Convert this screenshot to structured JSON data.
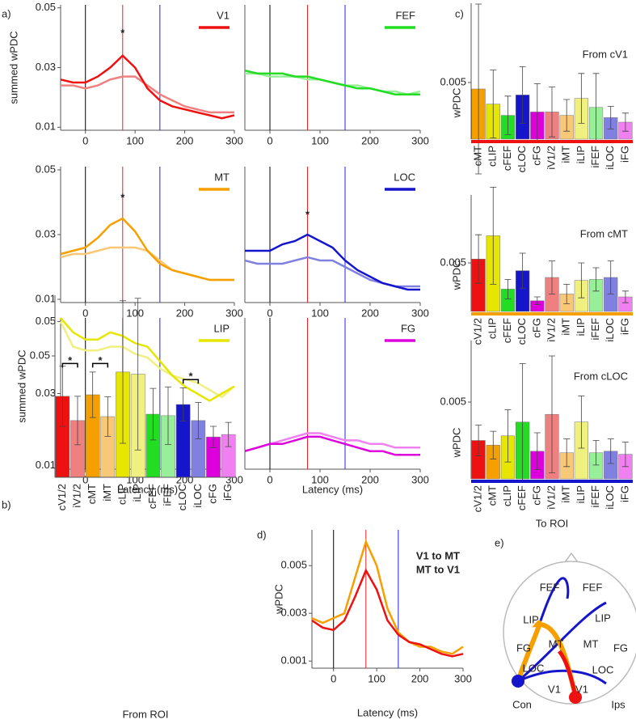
{
  "panel_labels": [
    "a)",
    "b)",
    "c)",
    "d)",
    "e)"
  ],
  "chart_data": [
    {
      "type": "line",
      "title": "V1",
      "title_color": "#ee1111",
      "ylabel": "summed wPDC",
      "x": [
        -50,
        -25,
        0,
        25,
        50,
        75,
        100,
        125,
        150,
        175,
        200,
        225,
        250,
        275,
        300
      ],
      "series": [
        {
          "color": "#ee1111",
          "values": [
            0.026,
            0.025,
            0.025,
            0.027,
            0.03,
            0.034,
            0.03,
            0.023,
            0.019,
            0.017,
            0.016,
            0.015,
            0.014,
            0.013,
            0.014
          ]
        },
        {
          "color": "#f08080",
          "values": [
            0.024,
            0.024,
            0.023,
            0.024,
            0.026,
            0.027,
            0.027,
            0.024,
            0.021,
            0.019,
            0.017,
            0.016,
            0.015,
            0.015,
            0.015
          ]
        }
      ],
      "xlim": [
        -50,
        300
      ],
      "xticks": [
        0,
        100,
        200,
        300
      ],
      "ylim": [
        0.009,
        0.051
      ],
      "yticks": [
        0.01,
        0.03,
        0.05
      ],
      "vlines": [
        0,
        75,
        150
      ],
      "vline_colors": [
        "#000000",
        "#ee2222",
        "#2222ee"
      ],
      "annotations": [
        {
          "text": "*",
          "x": 75,
          "y": 0.0413
        }
      ]
    },
    {
      "type": "line",
      "title": "FEF",
      "title_color": "#22dd22",
      "x": [
        -50,
        -25,
        0,
        25,
        50,
        75,
        100,
        125,
        150,
        175,
        200,
        225,
        250,
        275,
        300
      ],
      "series": [
        {
          "color": "#22dd22",
          "values": [
            0.029,
            0.028,
            0.028,
            0.028,
            0.027,
            0.027,
            0.026,
            0.025,
            0.024,
            0.023,
            0.023,
            0.022,
            0.021,
            0.021,
            0.021
          ]
        },
        {
          "color": "#99ee99",
          "values": [
            0.028,
            0.028,
            0.027,
            0.027,
            0.027,
            0.026,
            0.026,
            0.025,
            0.024,
            0.024,
            0.023,
            0.022,
            0.022,
            0.021,
            0.022
          ]
        }
      ],
      "xlim": [
        -50,
        300
      ],
      "xticks": [
        0,
        100,
        200,
        300
      ],
      "ylim": [
        0.009,
        0.051
      ],
      "vlines": [
        0,
        75,
        150
      ],
      "vline_colors": [
        "#000000",
        "#ee2222",
        "#2222ee"
      ]
    },
    {
      "type": "line",
      "title": "MT",
      "title_color": "#f5a000",
      "x": [
        -50,
        -25,
        0,
        25,
        50,
        75,
        100,
        125,
        150,
        175,
        200,
        225,
        250,
        275,
        300
      ],
      "series": [
        {
          "color": "#f5a000",
          "values": [
            0.024,
            0.025,
            0.026,
            0.029,
            0.033,
            0.035,
            0.031,
            0.025,
            0.021,
            0.019,
            0.018,
            0.017,
            0.016,
            0.016,
            0.016
          ]
        },
        {
          "color": "#f8c878",
          "values": [
            0.023,
            0.024,
            0.024,
            0.025,
            0.026,
            0.026,
            0.026,
            0.025,
            0.022,
            0.019,
            0.018,
            0.017,
            0.016,
            0.016,
            0.016
          ]
        }
      ],
      "xlim": [
        -50,
        300
      ],
      "xticks": [
        0,
        100,
        200,
        300
      ],
      "ylim": [
        0.009,
        0.051
      ],
      "yticks": [
        0.01,
        0.03,
        0.05
      ],
      "vlines": [
        0,
        75,
        150
      ],
      "vline_colors": [
        "#000000",
        "#ee2222",
        "#2222ee"
      ],
      "annotations": [
        {
          "text": "*",
          "x": 75,
          "y": 0.0412
        }
      ]
    },
    {
      "type": "line",
      "title": "LOC",
      "title_color": "#1515cc",
      "x": [
        -50,
        -25,
        0,
        25,
        50,
        75,
        100,
        125,
        150,
        175,
        200,
        225,
        250,
        275,
        300
      ],
      "series": [
        {
          "color": "#1515cc",
          "values": [
            0.025,
            0.025,
            0.025,
            0.027,
            0.028,
            0.03,
            0.028,
            0.026,
            0.022,
            0.019,
            0.017,
            0.015,
            0.014,
            0.013,
            0.013
          ]
        },
        {
          "color": "#8080e0",
          "values": [
            0.022,
            0.021,
            0.021,
            0.021,
            0.022,
            0.023,
            0.022,
            0.022,
            0.02,
            0.018,
            0.016,
            0.015,
            0.014,
            0.014,
            0.014
          ]
        }
      ],
      "xlim": [
        -50,
        300
      ],
      "xticks": [
        0,
        100,
        200,
        300
      ],
      "ylim": [
        0.009,
        0.051
      ],
      "vlines": [
        0,
        75,
        150
      ],
      "vline_colors": [
        "#000000",
        "#ee2222",
        "#2222ee"
      ],
      "annotations": [
        {
          "text": "*",
          "x": 75,
          "y": 0.036
        }
      ]
    },
    {
      "type": "line",
      "title": "LIP",
      "title_color": "#e6e600",
      "xlabel": "Latency (ms)",
      "x": [
        -50,
        -25,
        0,
        25,
        50,
        75,
        100,
        125,
        150,
        175,
        200,
        225,
        250,
        275,
        300
      ],
      "series": [
        {
          "color": "#e6e600",
          "values": [
            0.051,
            0.047,
            0.045,
            0.045,
            0.047,
            0.046,
            0.044,
            0.043,
            0.039,
            0.035,
            0.032,
            0.03,
            0.028,
            0.03,
            0.032
          ]
        },
        {
          "color": "#f0f080",
          "values": [
            0.05,
            0.043,
            0.042,
            0.042,
            0.043,
            0.043,
            0.041,
            0.04,
            0.037,
            0.035,
            0.034,
            0.033,
            0.031,
            0.029,
            0.032
          ]
        }
      ],
      "xlim": [
        -50,
        300
      ],
      "xticks": [
        0,
        100,
        200,
        300
      ],
      "ylim": [
        0.009,
        0.051
      ],
      "yticks": [
        0.01,
        0.03,
        0.05
      ],
      "vlines": [
        0,
        75,
        150
      ],
      "vline_colors": [
        "#000000",
        "#ee2222",
        "#2222ee"
      ]
    },
    {
      "type": "line",
      "title": "FG",
      "title_color": "#dd00dd",
      "xlabel": "Latency (ms)",
      "x": [
        -50,
        -25,
        0,
        25,
        50,
        75,
        100,
        125,
        150,
        175,
        200,
        225,
        250,
        275,
        300
      ],
      "series": [
        {
          "color": "#dd00dd",
          "values": [
            0.014,
            0.015,
            0.016,
            0.016,
            0.017,
            0.018,
            0.018,
            0.017,
            0.016,
            0.015,
            0.014,
            0.014,
            0.013,
            0.013,
            0.013
          ]
        },
        {
          "color": "#f080f0",
          "values": [
            0.014,
            0.015,
            0.016,
            0.017,
            0.018,
            0.019,
            0.019,
            0.018,
            0.017,
            0.017,
            0.016,
            0.016,
            0.015,
            0.015,
            0.015
          ]
        }
      ],
      "xlim": [
        -50,
        300
      ],
      "xticks": [
        0,
        100,
        200,
        300
      ],
      "ylim": [
        0.009,
        0.051
      ],
      "vlines": [
        0,
        75,
        150
      ],
      "vline_colors": [
        "#000000",
        "#ee2222",
        "#2222ee"
      ]
    },
    {
      "type": "bar",
      "ylabel": "summed wPDC",
      "xlabel": "From ROI",
      "categories": [
        "cV1/2",
        "iV1/2",
        "cMT",
        "iMT",
        "cLIP",
        "iLIP",
        "cFEF",
        "iFEF",
        "cLOC",
        "iLOC",
        "cFG",
        "iFG"
      ],
      "values": [
        0.0367,
        0.0287,
        0.0372,
        0.03,
        0.0447,
        0.044,
        0.0308,
        0.0303,
        0.034,
        0.0287,
        0.0233,
        0.0241
      ],
      "errors": [
        0.0099,
        0.008,
        0.0075,
        0.0065,
        0.0235,
        0.025,
        0.0085,
        0.0095,
        0.0055,
        0.006,
        0.0035,
        0.004
      ],
      "colors": [
        "#ee1111",
        "#f08080",
        "#f5a000",
        "#f8c878",
        "#e6e600",
        "#f0f080",
        "#22dd22",
        "#99ee99",
        "#1515cc",
        "#8080e0",
        "#dd00dd",
        "#f080f0"
      ],
      "ylim": [
        0.01,
        0.07
      ],
      "yticks": [
        0.05
      ],
      "annotations": [
        {
          "text": "*",
          "between": [
            0,
            1
          ],
          "y": 0.0475
        },
        {
          "text": "*",
          "between": [
            2,
            3
          ],
          "y": 0.0475
        },
        {
          "text": "*",
          "between": [
            8,
            9
          ],
          "y": 0.0422
        }
      ]
    },
    {
      "type": "bar",
      "title": "From cV1",
      "ylabel": "wPDC",
      "baseline_color": "#ee1111",
      "categories": [
        "cMT",
        "cLIP",
        "cFEF",
        "cLOC",
        "cFG",
        "iV1/2",
        "iMT",
        "iLIP",
        "iFEF",
        "iLOC",
        "iFG"
      ],
      "values": [
        0.00443,
        0.0031,
        0.0021,
        0.0039,
        0.0024,
        0.0024,
        0.0021,
        0.0036,
        0.0028,
        0.0019,
        0.0015
      ],
      "errors": [
        0.0075,
        0.003,
        0.0017,
        0.0025,
        0.0025,
        0.0022,
        0.0014,
        0.0022,
        0.003,
        0.001,
        0.0008
      ],
      "colors": [
        "#f5a000",
        "#e6e600",
        "#22dd22",
        "#1515cc",
        "#dd00dd",
        "#f08080",
        "#f8c878",
        "#f0f080",
        "#99ee99",
        "#8080e0",
        "#f080f0"
      ],
      "ylim": [
        0,
        0.012
      ],
      "yticks": [
        0.005
      ]
    },
    {
      "type": "bar",
      "title": "From cMT",
      "ylabel": "wPDC",
      "baseline_color": "#f5a000",
      "categories": [
        "cV1/2",
        "cLIP",
        "cFEF",
        "cLOC",
        "cFG",
        "iV1/2",
        "iMT",
        "iLIP",
        "iFEF",
        "iLOC",
        "iFG"
      ],
      "values": [
        0.0054,
        0.0078,
        0.0023,
        0.0042,
        0.0011,
        0.0035,
        0.0018,
        0.0032,
        0.0033,
        0.0035,
        0.0015
      ],
      "errors": [
        0.0025,
        0.005,
        0.001,
        0.0018,
        0.0004,
        0.0017,
        0.001,
        0.0018,
        0.0012,
        0.0017,
        0.0006
      ],
      "colors": [
        "#ee1111",
        "#e6e600",
        "#22dd22",
        "#1515cc",
        "#dd00dd",
        "#f08080",
        "#f8c878",
        "#f0f080",
        "#99ee99",
        "#8080e0",
        "#f080f0"
      ],
      "ylim": [
        0,
        0.012
      ],
      "yticks": [
        0.005
      ]
    },
    {
      "type": "bar",
      "title": "From cLOC",
      "ylabel": "wPDC",
      "xlabel": "To ROI",
      "baseline_color": "#1515cc",
      "categories": [
        "cV1/2",
        "cMT",
        "cLIP",
        "cFEF",
        "cFG",
        "iV1/2",
        "iMT",
        "iLIP",
        "iFEF",
        "iLOC",
        "iFG"
      ],
      "values": [
        0.0025,
        0.0022,
        0.0028,
        0.0037,
        0.0018,
        0.0042,
        0.0017,
        0.0037,
        0.0017,
        0.0018,
        0.0016
      ],
      "errors": [
        0.001,
        0.0009,
        0.0017,
        0.0038,
        0.0012,
        0.0038,
        0.0009,
        0.0017,
        0.0008,
        0.0008,
        0.0008
      ],
      "colors": [
        "#ee1111",
        "#f5a000",
        "#e6e600",
        "#22dd22",
        "#dd00dd",
        "#f08080",
        "#f8c878",
        "#f0f080",
        "#99ee99",
        "#8080e0",
        "#f080f0"
      ],
      "ylim": [
        0,
        0.009
      ],
      "yticks": [
        0.005
      ]
    },
    {
      "type": "line",
      "ylabel": "wPDC",
      "xlabel": "Latency (ms)",
      "x": [
        -50,
        -25,
        0,
        25,
        50,
        75,
        100,
        125,
        150,
        175,
        200,
        225,
        250,
        275,
        300
      ],
      "series": [
        {
          "name": "V1 to MT",
          "color": "#ee1111",
          "values": [
            0.0027,
            0.0024,
            0.0023,
            0.0027,
            0.0037,
            0.0048,
            0.004,
            0.0027,
            0.0021,
            0.0018,
            0.0017,
            0.0015,
            0.0013,
            0.0012,
            0.0013
          ]
        },
        {
          "name": "MT to V1",
          "color": "#f5a000",
          "values": [
            0.0028,
            0.0026,
            0.0028,
            0.003,
            0.0045,
            0.006,
            0.005,
            0.0032,
            0.0022,
            0.0018,
            0.0016,
            0.0016,
            0.0014,
            0.0013,
            0.0016
          ]
        }
      ],
      "xlim": [
        -50,
        300
      ],
      "xticks": [
        0,
        100,
        200,
        300
      ],
      "ylim": [
        0.0007,
        0.0065
      ],
      "yticks": [
        0.001,
        0.003,
        0.005
      ],
      "vlines": [
        0,
        75,
        150
      ],
      "vline_colors": [
        "#000000",
        "#ee2222",
        "#2222ee"
      ]
    }
  ],
  "diagram": {
    "labels": [
      "FEF",
      "FEF",
      "LIP",
      "LIP",
      "FG",
      "MT",
      "MT",
      "FG",
      "LOC",
      "LOC",
      "V1",
      "V1",
      "Con",
      "Ips"
    ]
  }
}
